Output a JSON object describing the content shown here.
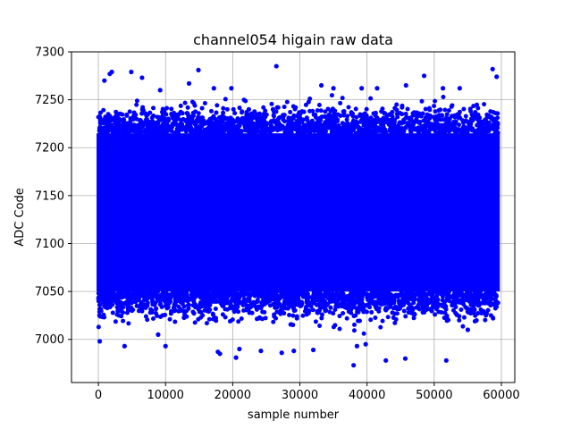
{
  "chart_data": {
    "type": "scatter",
    "title": "channel054 higain raw data",
    "xlabel": "sample number",
    "ylabel": "ADC Code",
    "xlim": [
      -4000,
      62000
    ],
    "ylim": [
      6955,
      7300
    ],
    "xticks": [
      0,
      10000,
      20000,
      30000,
      40000,
      50000,
      60000
    ],
    "yticks": [
      7000,
      7050,
      7100,
      7150,
      7200,
      7250,
      7300
    ],
    "grid": true,
    "marker_color": "#0000ff",
    "series": [
      {
        "x_range": [
          0,
          59500
        ],
        "sample_count": 59500,
        "dense_band": [
          7050,
          7215
        ],
        "points": [
          [
            200,
            6998
          ],
          [
            900,
            7270
          ],
          [
            1700,
            7277
          ],
          [
            2000,
            7279
          ],
          [
            2900,
            7235
          ],
          [
            3900,
            6993
          ],
          [
            4900,
            7279
          ],
          [
            6500,
            7273
          ],
          [
            8900,
            7005
          ],
          [
            9200,
            7260
          ],
          [
            10000,
            6993
          ],
          [
            12000,
            7235
          ],
          [
            13500,
            7267
          ],
          [
            14900,
            7281
          ],
          [
            17200,
            7262
          ],
          [
            17800,
            6987
          ],
          [
            18100,
            6985
          ],
          [
            19800,
            7262
          ],
          [
            20500,
            6981
          ],
          [
            21000,
            6990
          ],
          [
            22400,
            7240
          ],
          [
            24200,
            6988
          ],
          [
            26000,
            7240
          ],
          [
            26500,
            7285
          ],
          [
            27300,
            6986
          ],
          [
            29100,
            6988
          ],
          [
            32000,
            6989
          ],
          [
            33200,
            7265
          ],
          [
            35000,
            7262
          ],
          [
            38000,
            6973
          ],
          [
            38500,
            6993
          ],
          [
            39200,
            7262
          ],
          [
            39800,
            6995
          ],
          [
            41500,
            7262
          ],
          [
            42800,
            6978
          ],
          [
            45700,
            6980
          ],
          [
            45800,
            7265
          ],
          [
            48500,
            7275
          ],
          [
            51300,
            7262
          ],
          [
            51800,
            6978
          ],
          [
            53800,
            7262
          ],
          [
            55000,
            7010
          ],
          [
            58700,
            7282
          ],
          [
            59300,
            7274
          ]
        ]
      }
    ]
  }
}
